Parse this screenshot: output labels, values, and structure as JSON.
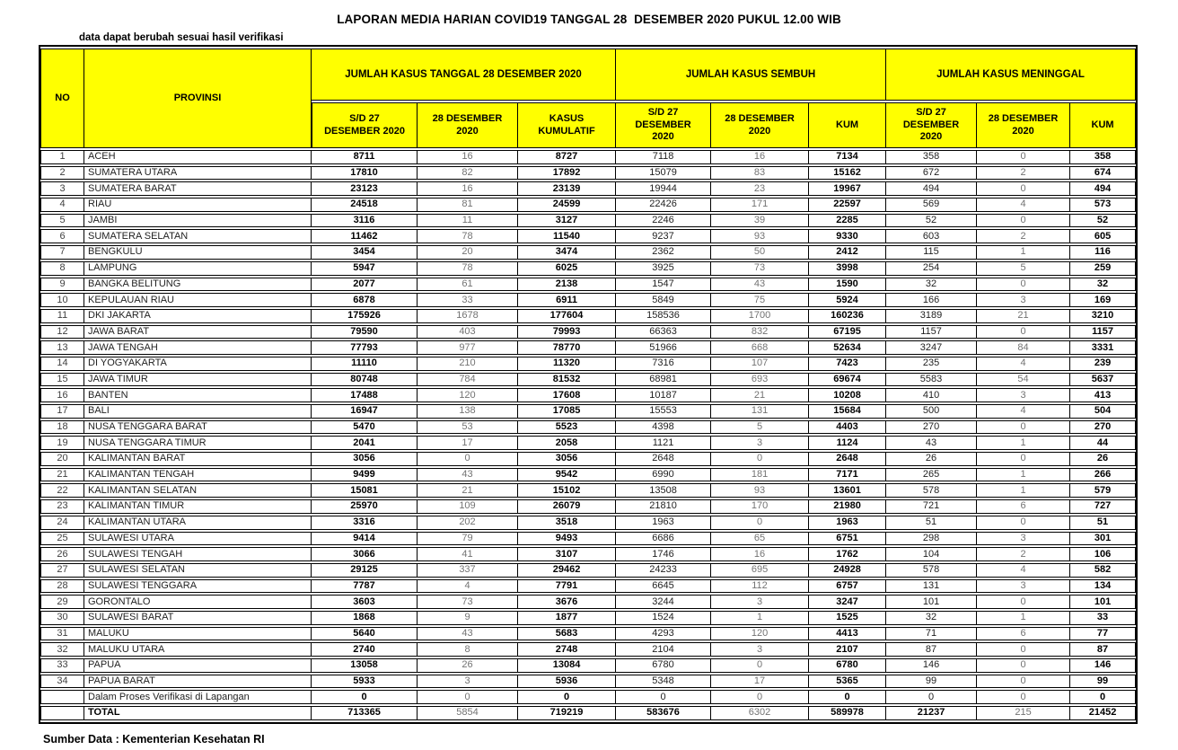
{
  "title": "LAPORAN MEDIA HARIAN COVID19 TANGGAL 28  DESEMBER 2020 PUKUL 12.00 WIB",
  "note": "data dapat berubah sesuai hasil verifikasi",
  "source": "Sumber Data : Kementerian Kesehatan RI",
  "colors": {
    "header_bg": "#FFFF00",
    "border": "#000000",
    "daily_value_gray": "#737373",
    "text": "#1f1f1f"
  },
  "table": {
    "col_no": "NO",
    "col_provinsi": "PROVINSI",
    "groups": [
      {
        "label": "JUMLAH KASUS TANGGAL 28 DESEMBER 2020",
        "sub": [
          "S/D 27\nDESEMBER 2020",
          "28 DESEMBER\n2020",
          "KASUS\nKUMULATIF"
        ]
      },
      {
        "label": "JUMLAH KASUS SEMBUH",
        "sub": [
          "S/D 27\nDESEMBER\n2020",
          "28 DESEMBER\n2020",
          "KUM"
        ]
      },
      {
        "label": "JUMLAH KASUS MENINGGAL",
        "sub": [
          "S/D 27\nDESEMBER\n2020",
          "28 DESEMBER\n2020",
          "KUM"
        ]
      }
    ],
    "rows": [
      {
        "no": "1",
        "provinsi": "ACEH",
        "values": [
          8711,
          16,
          8727,
          7118,
          16,
          7134,
          358,
          0,
          358
        ]
      },
      {
        "no": "2",
        "provinsi": "SUMATERA UTARA",
        "values": [
          17810,
          82,
          17892,
          15079,
          83,
          15162,
          672,
          2,
          674
        ]
      },
      {
        "no": "3",
        "provinsi": "SUMATERA BARAT",
        "values": [
          23123,
          16,
          23139,
          19944,
          23,
          19967,
          494,
          0,
          494
        ]
      },
      {
        "no": "4",
        "provinsi": "RIAU",
        "values": [
          24518,
          81,
          24599,
          22426,
          171,
          22597,
          569,
          4,
          573
        ]
      },
      {
        "no": "5",
        "provinsi": "JAMBI",
        "values": [
          3116,
          11,
          3127,
          2246,
          39,
          2285,
          52,
          0,
          52
        ]
      },
      {
        "no": "6",
        "provinsi": "SUMATERA SELATAN",
        "values": [
          11462,
          78,
          11540,
          9237,
          93,
          9330,
          603,
          2,
          605
        ]
      },
      {
        "no": "7",
        "provinsi": "BENGKULU",
        "values": [
          3454,
          20,
          3474,
          2362,
          50,
          2412,
          115,
          1,
          116
        ]
      },
      {
        "no": "8",
        "provinsi": "LAMPUNG",
        "values": [
          5947,
          78,
          6025,
          3925,
          73,
          3998,
          254,
          5,
          259
        ]
      },
      {
        "no": "9",
        "provinsi": "BANGKA BELITUNG",
        "values": [
          2077,
          61,
          2138,
          1547,
          43,
          1590,
          32,
          0,
          32
        ]
      },
      {
        "no": "10",
        "provinsi": "KEPULAUAN RIAU",
        "values": [
          6878,
          33,
          6911,
          5849,
          75,
          5924,
          166,
          3,
          169
        ]
      },
      {
        "no": "11",
        "provinsi": "DKI JAKARTA",
        "values": [
          175926,
          1678,
          177604,
          158536,
          1700,
          160236,
          3189,
          21,
          3210
        ]
      },
      {
        "no": "12",
        "provinsi": "JAWA BARAT",
        "values": [
          79590,
          403,
          79993,
          66363,
          832,
          67195,
          1157,
          0,
          1157
        ]
      },
      {
        "no": "13",
        "provinsi": "JAWA TENGAH",
        "values": [
          77793,
          977,
          78770,
          51966,
          668,
          52634,
          3247,
          84,
          3331
        ]
      },
      {
        "no": "14",
        "provinsi": "DI YOGYAKARTA",
        "values": [
          11110,
          210,
          11320,
          7316,
          107,
          7423,
          235,
          4,
          239
        ]
      },
      {
        "no": "15",
        "provinsi": "JAWA TIMUR",
        "values": [
          80748,
          784,
          81532,
          68981,
          693,
          69674,
          5583,
          54,
          5637
        ]
      },
      {
        "no": "16",
        "provinsi": "BANTEN",
        "values": [
          17488,
          120,
          17608,
          10187,
          21,
          10208,
          410,
          3,
          413
        ]
      },
      {
        "no": "17",
        "provinsi": "BALI",
        "values": [
          16947,
          138,
          17085,
          15553,
          131,
          15684,
          500,
          4,
          504
        ]
      },
      {
        "no": "18",
        "provinsi": "NUSA TENGGARA BARAT",
        "values": [
          5470,
          53,
          5523,
          4398,
          5,
          4403,
          270,
          0,
          270
        ]
      },
      {
        "no": "19",
        "provinsi": "NUSA TENGGARA TIMUR",
        "values": [
          2041,
          17,
          2058,
          1121,
          3,
          1124,
          43,
          1,
          44
        ]
      },
      {
        "no": "20",
        "provinsi": "KALIMANTAN BARAT",
        "values": [
          3056,
          0,
          3056,
          2648,
          0,
          2648,
          26,
          0,
          26
        ]
      },
      {
        "no": "21",
        "provinsi": "KALIMANTAN TENGAH",
        "values": [
          9499,
          43,
          9542,
          6990,
          181,
          7171,
          265,
          1,
          266
        ]
      },
      {
        "no": "22",
        "provinsi": "KALIMANTAN SELATAN",
        "values": [
          15081,
          21,
          15102,
          13508,
          93,
          13601,
          578,
          1,
          579
        ]
      },
      {
        "no": "23",
        "provinsi": "KALIMANTAN TIMUR",
        "values": [
          25970,
          109,
          26079,
          21810,
          170,
          21980,
          721,
          6,
          727
        ]
      },
      {
        "no": "24",
        "provinsi": "KALIMANTAN UTARA",
        "values": [
          3316,
          202,
          3518,
          1963,
          0,
          1963,
          51,
          0,
          51
        ]
      },
      {
        "no": "25",
        "provinsi": "SULAWESI UTARA",
        "values": [
          9414,
          79,
          9493,
          6686,
          65,
          6751,
          298,
          3,
          301
        ]
      },
      {
        "no": "26",
        "provinsi": "SULAWESI TENGAH",
        "values": [
          3066,
          41,
          3107,
          1746,
          16,
          1762,
          104,
          2,
          106
        ]
      },
      {
        "no": "27",
        "provinsi": "SULAWESI SELATAN",
        "values": [
          29125,
          337,
          29462,
          24233,
          695,
          24928,
          578,
          4,
          582
        ]
      },
      {
        "no": "28",
        "provinsi": "SULAWESI TENGGARA",
        "values": [
          7787,
          4,
          7791,
          6645,
          112,
          6757,
          131,
          3,
          134
        ]
      },
      {
        "no": "29",
        "provinsi": "GORONTALO",
        "values": [
          3603,
          73,
          3676,
          3244,
          3,
          3247,
          101,
          0,
          101
        ]
      },
      {
        "no": "30",
        "provinsi": "SULAWESI BARAT",
        "values": [
          1868,
          9,
          1877,
          1524,
          1,
          1525,
          32,
          1,
          33
        ]
      },
      {
        "no": "31",
        "provinsi": "MALUKU",
        "values": [
          5640,
          43,
          5683,
          4293,
          120,
          4413,
          71,
          6,
          77
        ]
      },
      {
        "no": "32",
        "provinsi": "MALUKU UTARA",
        "values": [
          2740,
          8,
          2748,
          2104,
          3,
          2107,
          87,
          0,
          87
        ]
      },
      {
        "no": "33",
        "provinsi": "PAPUA",
        "values": [
          13058,
          26,
          13084,
          6780,
          0,
          6780,
          146,
          0,
          146
        ]
      },
      {
        "no": "34",
        "provinsi": "PAPUA BARAT",
        "values": [
          5933,
          3,
          5936,
          5348,
          17,
          5365,
          99,
          0,
          99
        ]
      }
    ],
    "verification_row": {
      "no": "",
      "provinsi": "Dalam Proses Verifikasi di Lapangan",
      "values": [
        0,
        0,
        0,
        0,
        0,
        0,
        0,
        0,
        0
      ]
    },
    "total_row": {
      "no": "",
      "provinsi": "TOTAL",
      "values": [
        713365,
        5854,
        719219,
        583676,
        6302,
        589978,
        21237,
        215,
        21452
      ]
    }
  }
}
